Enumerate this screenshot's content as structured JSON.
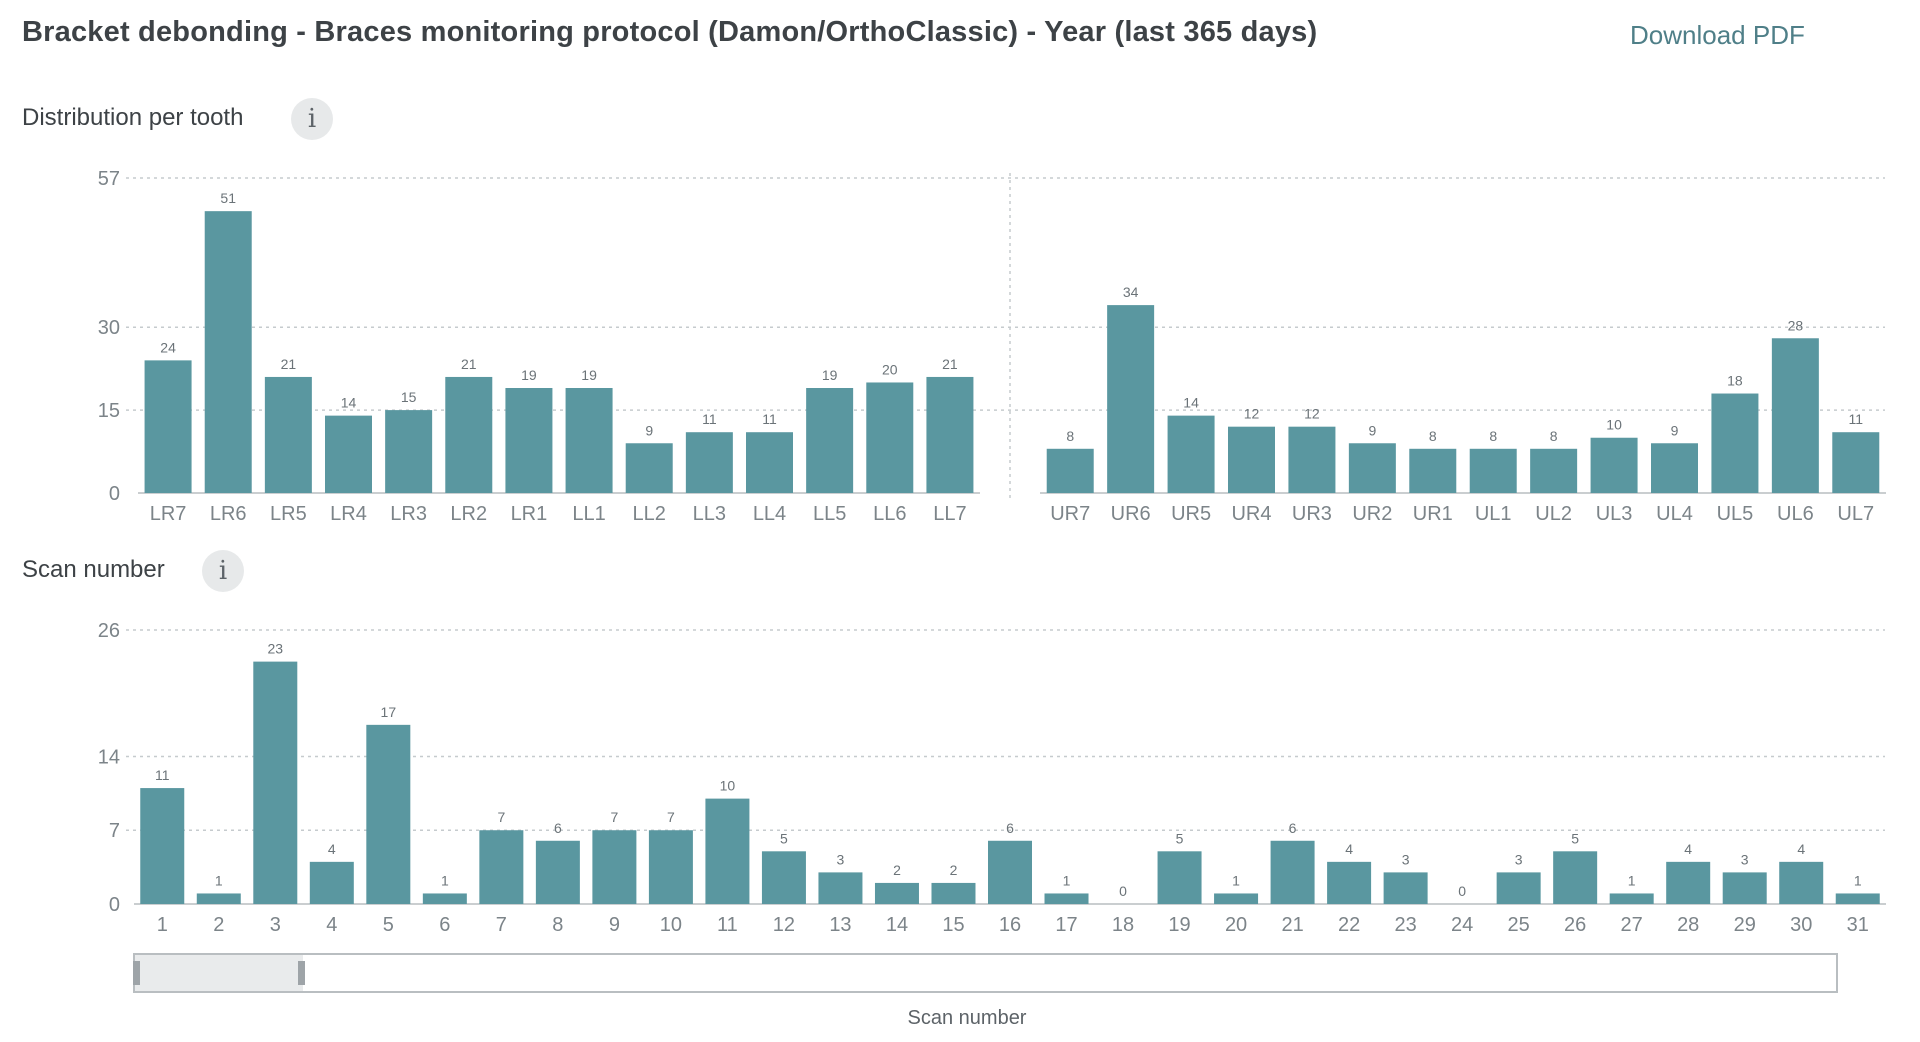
{
  "header": {
    "title": "Bracket debonding - Braces monitoring protocol (Damon/OrthoClassic) - Year (last 365 days)",
    "download_label": "Download PDF"
  },
  "sections": {
    "distribution_title": "Distribution per tooth",
    "scan_title": "Scan number",
    "info_glyph": "i"
  },
  "scroller": {
    "caption": "Scan number",
    "window_fraction": [
      0,
      0.1
    ]
  },
  "colors": {
    "bar": "#5a97a0",
    "link": "#4f7f88"
  },
  "chart_data": [
    {
      "type": "bar",
      "title": "Distribution per tooth",
      "ylim": [
        0,
        57
      ],
      "yticks": [
        0,
        15,
        30,
        57
      ],
      "grid": true,
      "groups": [
        {
          "categories": [
            "LR7",
            "LR6",
            "LR5",
            "LR4",
            "LR3",
            "LR2",
            "LR1",
            "LL1",
            "LL2",
            "LL3",
            "LL4",
            "LL5",
            "LL6",
            "LL7"
          ],
          "values": [
            24,
            51,
            21,
            14,
            15,
            21,
            19,
            19,
            9,
            11,
            11,
            19,
            20,
            21
          ]
        },
        {
          "categories": [
            "UR7",
            "UR6",
            "UR5",
            "UR4",
            "UR3",
            "UR2",
            "UR1",
            "UL1",
            "UL2",
            "UL3",
            "UL4",
            "UL5",
            "UL6",
            "UL7"
          ],
          "values": [
            8,
            34,
            14,
            12,
            12,
            9,
            8,
            8,
            8,
            10,
            9,
            18,
            28,
            11
          ]
        }
      ]
    },
    {
      "type": "bar",
      "title": "Scan number",
      "ylim": [
        0,
        26
      ],
      "yticks": [
        0,
        7,
        14,
        26
      ],
      "grid": true,
      "categories": [
        "1",
        "2",
        "3",
        "4",
        "5",
        "6",
        "7",
        "8",
        "9",
        "10",
        "11",
        "12",
        "13",
        "14",
        "15",
        "16",
        "17",
        "18",
        "19",
        "20",
        "21",
        "22",
        "23",
        "24",
        "25",
        "26",
        "27",
        "28",
        "29",
        "30",
        "31"
      ],
      "values": [
        11,
        1,
        23,
        4,
        17,
        1,
        7,
        6,
        7,
        7,
        10,
        5,
        3,
        2,
        2,
        6,
        1,
        0,
        5,
        1,
        6,
        4,
        3,
        0,
        3,
        5,
        1,
        4,
        3,
        4,
        1
      ]
    }
  ]
}
